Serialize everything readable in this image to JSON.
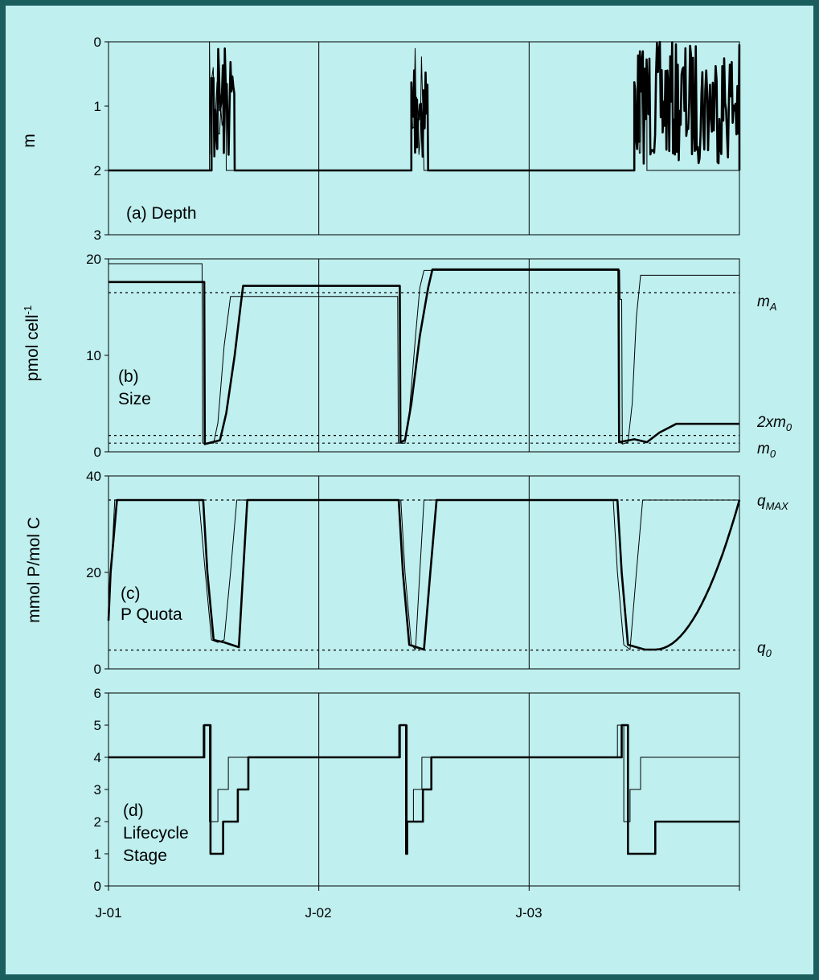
{
  "chart_data": [
    {
      "type": "line",
      "id": "depth",
      "panel_label": "(a) Depth",
      "ylabel": "m",
      "ylim": [
        3,
        0
      ],
      "yticks": [
        0,
        1,
        2,
        3
      ],
      "x_tick_labels": [
        "J-01",
        "J-02",
        "J-03"
      ],
      "x_range_years": [
        0,
        2.0
      ],
      "series": [
        {
          "style": "thin",
          "values_desc": "rest at 2 m; rises to 0–1.9 m during Jun–Aug each year"
        },
        {
          "style": "thick",
          "values_desc": "rest at 2 m; oscillates 0–1.9 m Jun–Aug 2001, Jun–Jul 2002, Jun–Dec 2003"
        }
      ]
    },
    {
      "type": "line",
      "id": "size",
      "panel_label_lines": [
        "(b)",
        "Size"
      ],
      "ylabel": "pmol cell",
      "ylabel_sup": "-1",
      "ylim": [
        0,
        20
      ],
      "yticks": [
        0,
        10,
        20
      ],
      "ref_lines": [
        {
          "value": 16.5,
          "label": "m",
          "sub": "A"
        },
        {
          "value": 1.7,
          "label": "2xm",
          "sub": "0"
        },
        {
          "value": 0.9,
          "label": "m",
          "sub": "0"
        }
      ],
      "series": [
        {
          "style": "thin",
          "points": [
            [
              0,
              19.5
            ],
            [
              0.45,
              19.5
            ],
            [
              0.455,
              0.9
            ],
            [
              0.49,
              0.9
            ],
            [
              0.51,
              3
            ],
            [
              0.55,
              12
            ],
            [
              0.575,
              16
            ],
            [
              0.6,
              16
            ],
            [
              1.38,
              16
            ],
            [
              1.385,
              0.8
            ],
            [
              1.42,
              0.8
            ],
            [
              1.44,
              3
            ],
            [
              1.47,
              12
            ],
            [
              1.49,
              17
            ],
            [
              1.52,
              19
            ],
            [
              1.98,
              19
            ]
          ]
        },
        {
          "style": "thick",
          "points": [
            [
              0,
              17.5
            ],
            [
              0.455,
              17.5
            ],
            [
              0.46,
              0.8
            ],
            [
              0.53,
              1.2
            ],
            [
              0.56,
              4
            ],
            [
              0.6,
              10
            ],
            [
              0.63,
              15
            ],
            [
              0.65,
              17
            ],
            [
              1.35,
              17
            ],
            [
              1.355,
              1.0
            ],
            [
              1.4,
              1.2
            ],
            [
              1.43,
              5
            ],
            [
              1.48,
              12
            ],
            [
              1.52,
              17
            ],
            [
              1.55,
              19
            ],
            [
              2.42,
              19
            ]
          ]
        }
      ]
    },
    {
      "type": "line",
      "id": "p_quota",
      "panel_label_lines": [
        "(c)",
        "P Quota"
      ],
      "ylabel": "mmol P/mol C",
      "ylim": [
        0,
        40
      ],
      "yticks": [
        0,
        20,
        40
      ],
      "ref_lines": [
        {
          "value": 35,
          "label": "q",
          "sub": "MAX"
        },
        {
          "value": 3.9,
          "label": "q",
          "sub": "0"
        }
      ]
    },
    {
      "type": "line",
      "id": "lifecycle",
      "panel_label_lines": [
        "(d)",
        "Lifecycle",
        "Stage"
      ],
      "ylim": [
        0,
        6
      ],
      "yticks": [
        0,
        1,
        2,
        3,
        4,
        5,
        6
      ],
      "series": [
        {
          "style": "thin",
          "steps": [
            [
              0,
              4
            ],
            [
              0.45,
              4
            ],
            [
              0.45,
              5
            ],
            [
              0.47,
              5
            ],
            [
              0.47,
              2
            ],
            [
              0.52,
              2
            ],
            [
              0.52,
              3
            ],
            [
              0.57,
              3
            ],
            [
              0.57,
              4
            ],
            [
              1,
              4
            ]
          ]
        },
        {
          "style": "thick",
          "steps": [
            [
              0,
              4
            ],
            [
              0.455,
              4
            ],
            [
              0.455,
              5
            ],
            [
              0.48,
              5
            ],
            [
              0.48,
              1
            ],
            [
              0.53,
              1
            ],
            [
              0.53,
              2
            ],
            [
              0.6,
              2
            ],
            [
              0.6,
              3
            ],
            [
              0.65,
              3
            ],
            [
              0.65,
              4
            ],
            [
              1,
              4
            ]
          ]
        }
      ]
    }
  ]
}
